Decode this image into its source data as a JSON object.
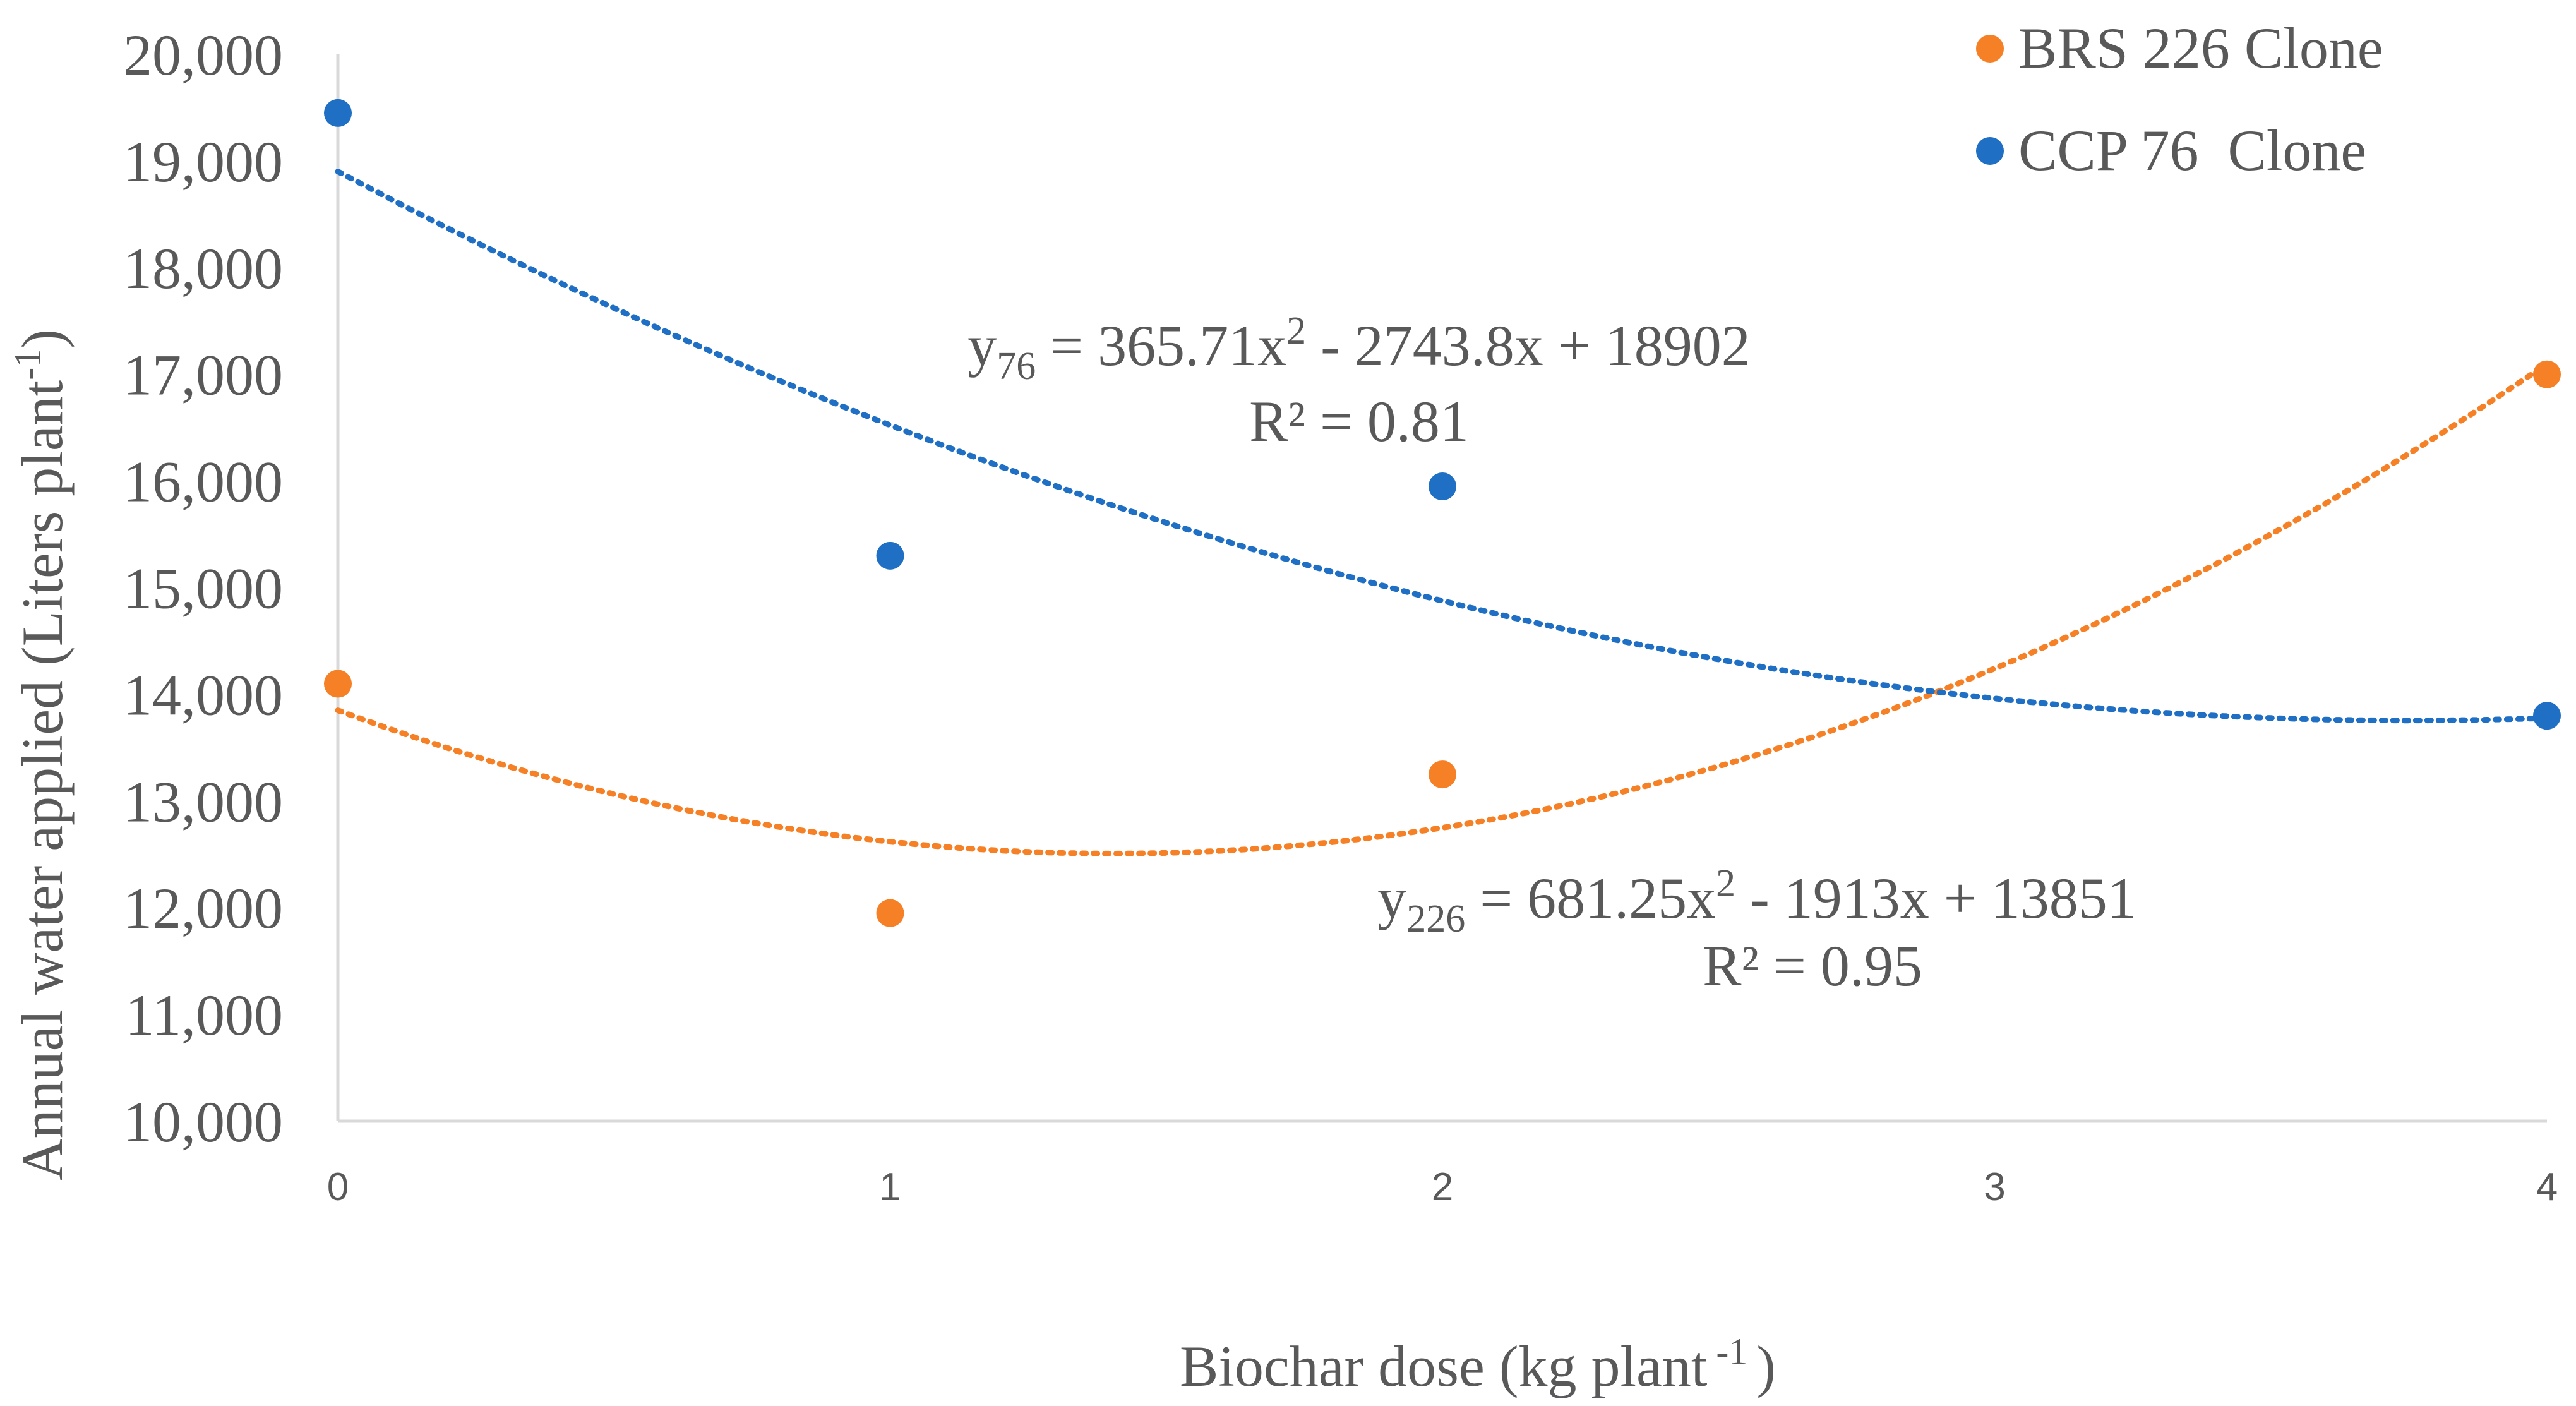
{
  "chart_data": {
    "type": "scatter",
    "title": "",
    "xlabel": "Biochar dose (kg plant",
    "xlabel_sup": "-1",
    "xlabel_end": ")",
    "ylabel": "Annual water applied (Liters plant",
    "ylabel_sup": "-1",
    "ylabel_end": ")",
    "xlim": [
      0,
      4
    ],
    "ylim": [
      10000,
      20000
    ],
    "x_ticks": [
      0,
      1,
      2,
      3,
      4
    ],
    "x_tick_labels": [
      "0",
      "1",
      "2",
      "3",
      "4"
    ],
    "y_ticks": [
      10000,
      11000,
      12000,
      13000,
      14000,
      15000,
      16000,
      17000,
      18000,
      19000,
      20000
    ],
    "y_tick_labels": [
      "10,000",
      "11,000",
      "12,000",
      "13,000",
      "14,000",
      "15,000",
      "16,000",
      "17,000",
      "18,000",
      "19,000",
      "20,000"
    ],
    "legend_position": "top-right",
    "series": [
      {
        "name": "BRS 226 Clone",
        "color": "#F58025",
        "x": [
          0,
          1,
          2,
          4
        ],
        "y": [
          14100,
          11950,
          13250,
          17000
        ],
        "trend": {
          "type": "polynomial",
          "coefficients": [
            681.25,
            -1913,
            13851
          ],
          "equation_var": "y",
          "equation_sub": "226",
          "equation_mid": " = 681.25x",
          "equation_sup": "2",
          "equation_end": " - 1913x + 13851",
          "r2": "R² = 0.95"
        }
      },
      {
        "name": "CCP 76  Clone",
        "color": "#1F6FC4",
        "x": [
          0,
          1,
          2,
          4
        ],
        "y": [
          19450,
          15300,
          15950,
          13800
        ],
        "trend": {
          "type": "polynomial",
          "coefficients": [
            365.71,
            -2743.8,
            18902
          ],
          "equation_var": "y",
          "equation_sub": "76",
          "equation_mid": " = 365.71x",
          "equation_sup": "2",
          "equation_end": " - 2743.8x + 18902",
          "r2": "R² = 0.81"
        }
      }
    ]
  }
}
